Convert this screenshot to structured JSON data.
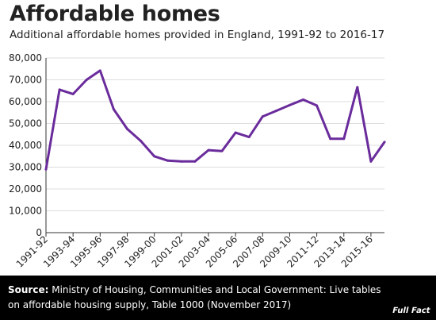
{
  "header": {
    "title": "Affordable homes",
    "subtitle": "Additional affordable homes provided in England, 1991-92 to 2016-17"
  },
  "footer": {
    "source_label": "Source:",
    "source_text": "Ministry of Housing, Communities and Local Government: Live tables on affordable housing supply, Table 1000 (November 2017)",
    "logo_text": "Full Fact"
  },
  "chart_data": {
    "type": "line",
    "title": "Affordable homes",
    "subtitle": "Additional affordable homes provided in England, 1991-92 to 2016-17",
    "xlabel": "",
    "ylabel": "",
    "categories": [
      "1991-92",
      "1992-93",
      "1993-94",
      "1994-95",
      "1995-96",
      "1996-97",
      "1997-98",
      "1998-99",
      "1999-00",
      "2000-01",
      "2001-02",
      "2002-03",
      "2003-04",
      "2004-05",
      "2005-06",
      "2006-07",
      "2007-08",
      "2008-09",
      "2009-10",
      "2010-11",
      "2011-12",
      "2012-13",
      "2013-14",
      "2014-15",
      "2015-16",
      "2016-17"
    ],
    "tick_labels": [
      "1991-92",
      "1993-94",
      "1995-96",
      "1997-98",
      "1999-00",
      "2001-02",
      "2003-04",
      "2005-06",
      "2007-08",
      "2009-10",
      "2011-12",
      "2013-14",
      "2015-16"
    ],
    "series": [
      {
        "values": [
          29000,
          65500,
          63500,
          70000,
          74200,
          56500,
          47500,
          42000,
          35000,
          33000,
          32600,
          32600,
          37800,
          37400,
          45800,
          43800,
          53200,
          55800,
          58400,
          60900,
          58200,
          43000,
          43000,
          66600,
          32600,
          41500
        ]
      }
    ],
    "ylim": [
      0,
      80000
    ],
    "yticks": [
      0,
      10000,
      20000,
      30000,
      40000,
      50000,
      60000,
      70000,
      80000
    ],
    "ytick_labels": [
      "0",
      "10,000",
      "20,000",
      "30,000",
      "40,000",
      "50,000",
      "60,000",
      "70,000",
      "80,000"
    ],
    "grid": true,
    "colors": {
      "line": "#6a2c9c",
      "grid": "#dddddd",
      "axis": "#333333"
    }
  }
}
